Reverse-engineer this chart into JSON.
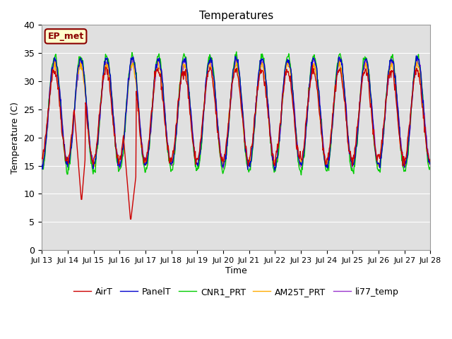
{
  "title": "Temperatures",
  "ylabel": "Temperature (C)",
  "xlabel": "Time",
  "ylim": [
    0,
    40
  ],
  "yticks": [
    0,
    5,
    10,
    15,
    20,
    25,
    30,
    35,
    40
  ],
  "annotation": "EP_met",
  "bg_color": "#e0e0e0",
  "line_colors": {
    "AirT": "#cc0000",
    "PanelT": "#0000cc",
    "CNR1_PRT": "#00cc00",
    "AM25T_PRT": "#ffaa00",
    "li77_temp": "#9933cc"
  },
  "x_tick_labels": [
    "Jul 13",
    "Jul 14",
    "Jul 15",
    "Jul 16",
    "Jul 17",
    "Jul 18",
    "Jul 19",
    "Jul 20",
    "Jul 21",
    "Jul 22",
    "Jul 23",
    "Jul 24",
    "Jul 25",
    "Jul 26",
    "Jul 27",
    "Jul 28"
  ],
  "n_days": 15,
  "pts_per_day": 48
}
